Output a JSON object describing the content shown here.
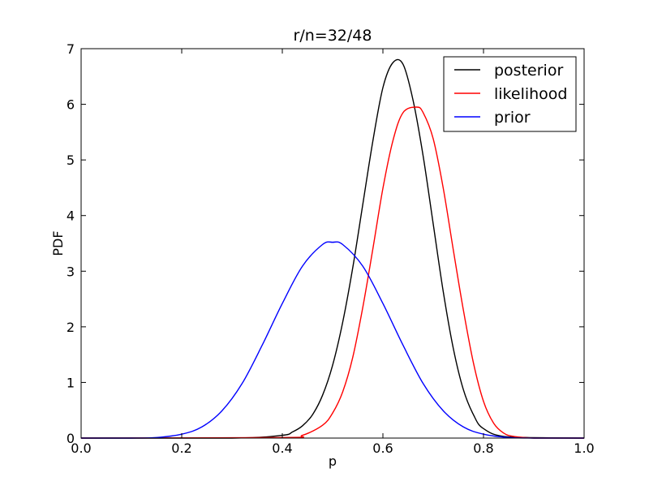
{
  "chart_data": {
    "type": "line",
    "title": "r/n=32/48",
    "xlabel": "p",
    "ylabel": "PDF",
    "xlim": [
      0.0,
      1.0
    ],
    "ylim": [
      0,
      7
    ],
    "xticks": [
      "0.0",
      "0.2",
      "0.4",
      "0.6",
      "0.8",
      "1.0"
    ],
    "yticks": [
      "0",
      "1",
      "2",
      "3",
      "4",
      "5",
      "6",
      "7"
    ],
    "grid": false,
    "legend_position": "top-right",
    "series": [
      {
        "name": "posterior",
        "color": "#000000",
        "x": [
          0.0,
          0.3,
          0.4,
          0.42,
          0.44,
          0.46,
          0.48,
          0.5,
          0.52,
          0.54,
          0.56,
          0.58,
          0.6,
          0.62,
          0.64,
          0.66,
          0.68,
          0.7,
          0.72,
          0.74,
          0.76,
          0.78,
          0.8,
          0.85,
          1.0
        ],
        "y": [
          0.0,
          0.0,
          0.05,
          0.11,
          0.22,
          0.42,
          0.77,
          1.31,
          2.08,
          3.06,
          4.2,
          5.34,
          6.3,
          6.75,
          6.72,
          6.07,
          5.07,
          3.85,
          2.63,
          1.61,
          0.87,
          0.42,
          0.17,
          0.02,
          0.0
        ]
      },
      {
        "name": "likelihood",
        "color": "#ff0000",
        "x": [
          0.0,
          0.4,
          0.44,
          0.48,
          0.5,
          0.52,
          0.54,
          0.56,
          0.58,
          0.6,
          0.62,
          0.64,
          0.667,
          0.68,
          0.7,
          0.72,
          0.74,
          0.76,
          0.78,
          0.8,
          0.82,
          0.84,
          0.86,
          0.9,
          1.0
        ],
        "y": [
          0.0,
          0.01,
          0.05,
          0.23,
          0.45,
          0.83,
          1.45,
          2.35,
          3.4,
          4.49,
          5.35,
          5.85,
          5.95,
          5.85,
          5.38,
          4.49,
          3.38,
          2.3,
          1.35,
          0.66,
          0.27,
          0.09,
          0.03,
          0.0,
          0.0
        ]
      },
      {
        "name": "prior",
        "color": "#0000ff",
        "x": [
          0.0,
          0.1,
          0.15,
          0.2,
          0.24,
          0.28,
          0.32,
          0.36,
          0.4,
          0.44,
          0.48,
          0.5,
          0.52,
          0.56,
          0.6,
          0.64,
          0.68,
          0.72,
          0.76,
          0.8,
          0.85,
          0.9,
          1.0
        ],
        "y": [
          0.0,
          0.0,
          0.01,
          0.07,
          0.2,
          0.49,
          0.98,
          1.67,
          2.42,
          3.09,
          3.48,
          3.52,
          3.48,
          3.09,
          2.42,
          1.67,
          0.98,
          0.49,
          0.2,
          0.07,
          0.01,
          0.0,
          0.0
        ]
      }
    ]
  }
}
